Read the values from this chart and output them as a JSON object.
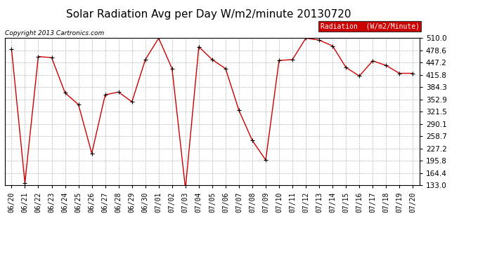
{
  "title": "Solar Radiation Avg per Day W/m2/minute 20130720",
  "copyright": "Copyright 2013 Cartronics.com",
  "legend_label": "Radiation  (W/m2/Minute)",
  "dates": [
    "06/20",
    "06/21",
    "06/22",
    "06/23",
    "06/24",
    "06/25",
    "06/26",
    "06/27",
    "06/28",
    "06/29",
    "06/30",
    "07/01",
    "07/02",
    "07/03",
    "07/04",
    "07/05",
    "07/06",
    "07/07",
    "07/08",
    "07/09",
    "07/10",
    "07/11",
    "07/12",
    "07/13",
    "07/14",
    "07/15",
    "07/16",
    "07/17",
    "07/18",
    "07/19",
    "07/20"
  ],
  "values": [
    482,
    139,
    463,
    460,
    370,
    340,
    215,
    365,
    372,
    347,
    455,
    510,
    432,
    125,
    488,
    455,
    432,
    325,
    248,
    198,
    453,
    455,
    510,
    505,
    490,
    435,
    413,
    452,
    440,
    420,
    420
  ],
  "ymin": 133.0,
  "ymax": 510.0,
  "yticks": [
    133.0,
    164.4,
    195.8,
    227.2,
    258.7,
    290.1,
    321.5,
    352.9,
    384.3,
    415.8,
    447.2,
    478.6,
    510.0
  ],
  "line_color": "#cc0000",
  "marker_color": "#000000",
  "bg_color": "#ffffff",
  "plot_bg_color": "#ffffff",
  "grid_color": "#999999",
  "title_fontsize": 11,
  "legend_bg_color": "#cc0000",
  "legend_text_color": "#ffffff"
}
